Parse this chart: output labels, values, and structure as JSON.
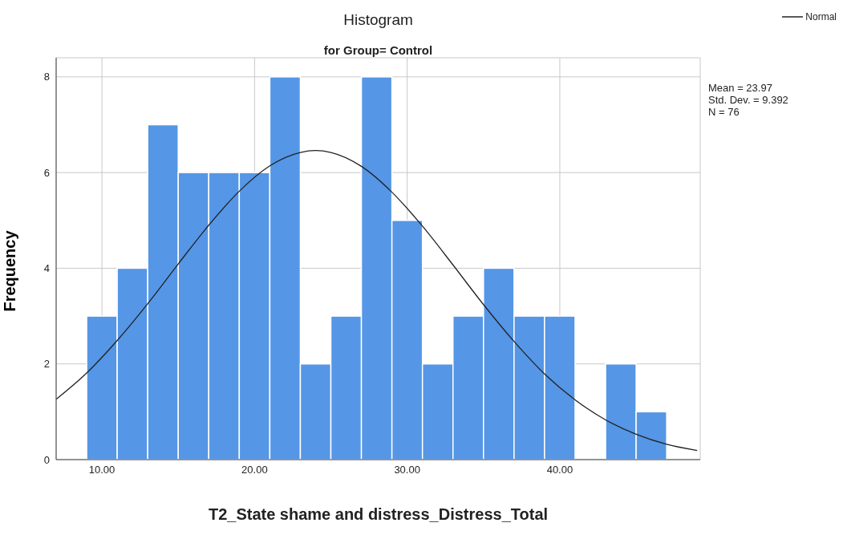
{
  "chart_data": {
    "type": "histogram",
    "title": "Histogram",
    "subtitle": "for Group= Control",
    "xlabel": "T2_State shame and distress_Distress_Total",
    "ylabel": "Frequency",
    "bins": [
      9,
      11,
      13,
      15,
      17,
      19,
      21,
      23,
      25,
      27,
      29,
      31,
      33,
      35,
      37,
      39,
      41,
      43,
      45,
      47
    ],
    "values": [
      3,
      4,
      7,
      6,
      6,
      6,
      8,
      2,
      3,
      8,
      5,
      2,
      3,
      4,
      3,
      3,
      0,
      2,
      1
    ],
    "color": "#5596e6",
    "series": [
      {
        "type": "line",
        "name": "Normal",
        "color": "#222222",
        "x": [
          7,
          9,
          11,
          13,
          15,
          17,
          19,
          21,
          23,
          24,
          25,
          27,
          29,
          31,
          33,
          35,
          37,
          39,
          41,
          43,
          45,
          47,
          49
        ],
        "values": [
          1.26,
          1.81,
          2.49,
          3.26,
          4.09,
          4.9,
          5.61,
          6.14,
          6.42,
          6.46,
          6.42,
          6.13,
          5.59,
          4.88,
          4.07,
          3.24,
          2.47,
          1.79,
          1.25,
          0.83,
          0.53,
          0.32,
          0.19
        ]
      }
    ],
    "xlim": [
      7,
      49.2
    ],
    "xticks": [
      {
        "value": 10,
        "label": "10.00"
      },
      {
        "value": 20,
        "label": "20.00"
      },
      {
        "value": 30,
        "label": "30.00"
      },
      {
        "value": 40,
        "label": "40.00"
      }
    ],
    "ylim": [
      0,
      8.4
    ],
    "yticks": [
      0,
      2,
      4,
      6,
      8
    ],
    "grid": true,
    "legend": "top right",
    "annotations": [
      "Mean = 23.97",
      "Std. Dev. = 9.392",
      "N = 76"
    ]
  }
}
